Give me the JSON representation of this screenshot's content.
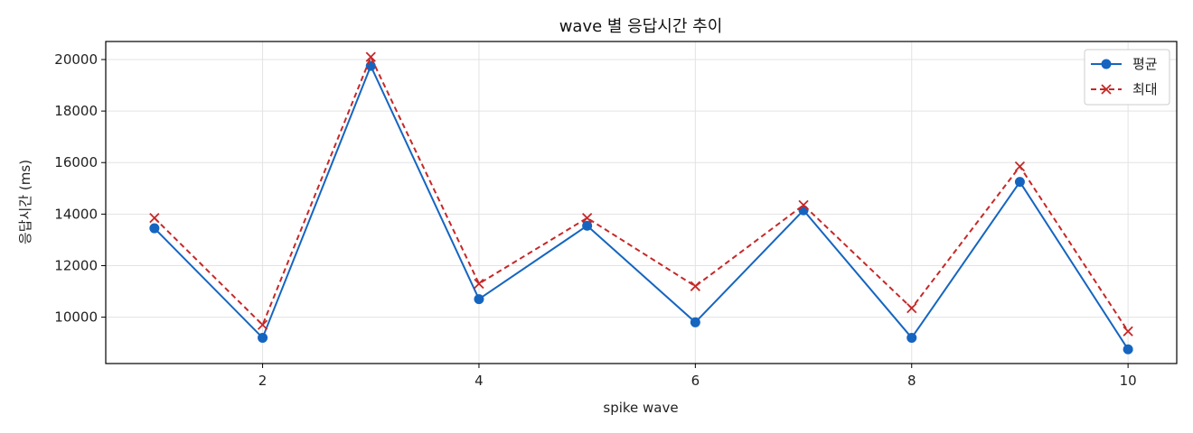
{
  "chart_data": {
    "type": "line",
    "title": "wave 별 응답시간 추이",
    "xlabel": "spike wave",
    "ylabel": "응답시간 (ms)",
    "x": [
      1,
      2,
      3,
      4,
      5,
      6,
      7,
      8,
      9,
      10
    ],
    "xlim": [
      0.55,
      10.45
    ],
    "ylim": [
      8200,
      20700
    ],
    "xticks": [
      2,
      4,
      6,
      8,
      10
    ],
    "yticks": [
      10000,
      12000,
      14000,
      16000,
      18000,
      20000
    ],
    "grid": true,
    "legend_position": "top-right",
    "series": [
      {
        "name": "평균",
        "color": "#1565c0",
        "marker": "circle",
        "line_style": "solid",
        "values": [
          13450,
          9200,
          19750,
          10700,
          13550,
          9800,
          14150,
          9200,
          15250,
          8750
        ]
      },
      {
        "name": "최대",
        "color": "#c62828",
        "marker": "x",
        "line_style": "dashed",
        "values": [
          13850,
          9700,
          20100,
          11300,
          13850,
          11200,
          14350,
          10350,
          15850,
          9450
        ]
      }
    ]
  }
}
